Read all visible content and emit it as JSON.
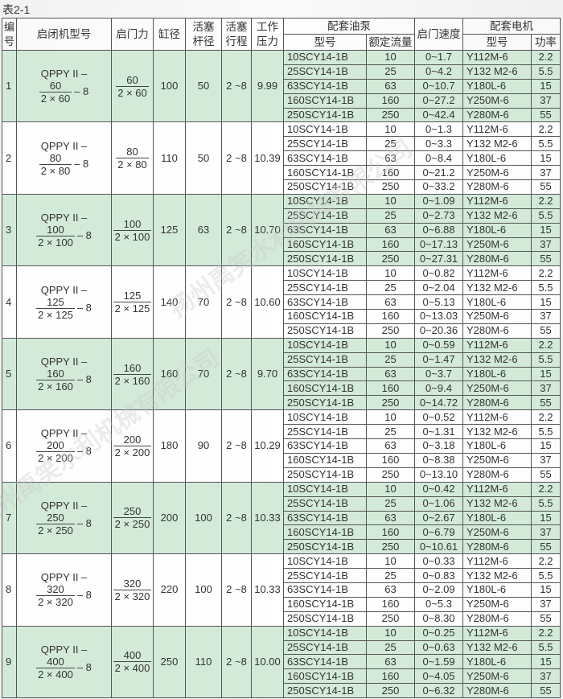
{
  "title": "表2-1",
  "colors": {
    "green_row": "#d3ead9",
    "white_row": "#ffffff",
    "border": "#555555"
  },
  "headers": {
    "no": "编号",
    "model": "启闭机型号",
    "force": "启门力",
    "bore": "缸径",
    "rod": "活塞杆径",
    "stroke": "活塞行程",
    "pressure": "工作压力",
    "pump_group": "配套油泵",
    "pump_model": "型号",
    "pump_flow": "额定流量",
    "speed": "启门速度",
    "motor_group": "配套电机",
    "motor_model": "型号",
    "motor_power": "功率"
  },
  "watermark": "扬州禹笑水利机械有限公司",
  "pump_models": [
    "10SCY14-1B",
    "25SCY14-1B",
    "63SCY14-1B",
    "160SCY14-1B",
    "250SCY14-1B"
  ],
  "groups": [
    {
      "no": "1",
      "model_prefix": "QPPY II –",
      "model_num": "60",
      "model_den": "2 × 60",
      "model_suffix": "– 8",
      "force_num": "60",
      "force_den": "2 × 60",
      "bore": "100",
      "rod": "50",
      "stroke": "2 ~8",
      "pressure": "9.99",
      "rows": [
        {
          "pump": "10SCY14-1B",
          "flow": "10",
          "speed": "0~1.7",
          "motor": "Y112M-6",
          "power": "2.2"
        },
        {
          "pump": "25SCY14-1B",
          "flow": "25",
          "speed": "0~4.2",
          "motor": "Y132 M2-6",
          "power": "5.5"
        },
        {
          "pump": "63SCY14-1B",
          "flow": "63",
          "speed": "0~10.7",
          "motor": "Y180L-6",
          "power": "15"
        },
        {
          "pump": "160SCY14-1B",
          "flow": "160",
          "speed": "0~27.2",
          "motor": "Y250M-6",
          "power": "37"
        },
        {
          "pump": "250SCY14-1B",
          "flow": "250",
          "speed": "0~42.4",
          "motor": "Y280M-6",
          "power": "55"
        }
      ]
    },
    {
      "no": "2",
      "model_prefix": "QPPY II –",
      "model_num": "80",
      "model_den": "2 × 80",
      "model_suffix": "– 8",
      "force_num": "80",
      "force_den": "2 × 80",
      "bore": "110",
      "rod": "50",
      "stroke": "2 ~8",
      "pressure": "10.39",
      "rows": [
        {
          "pump": "10SCY14-1B",
          "flow": "10",
          "speed": "0~1.3",
          "motor": "Y112M-6",
          "power": "2.2"
        },
        {
          "pump": "25SCY14-1B",
          "flow": "25",
          "speed": "0~3.3",
          "motor": "Y132 M2-6",
          "power": "5.5"
        },
        {
          "pump": "63SCY14-1B",
          "flow": "63",
          "speed": "0~8.4",
          "motor": "Y180L-6",
          "power": "15"
        },
        {
          "pump": "160SCY14-1B",
          "flow": "160",
          "speed": "0~21.2",
          "motor": "Y250M-6",
          "power": "37"
        },
        {
          "pump": "250SCY14-1B",
          "flow": "250",
          "speed": "0~33.2",
          "motor": "Y280M-6",
          "power": "55"
        }
      ]
    },
    {
      "no": "3",
      "model_prefix": "QPPY II –",
      "model_num": "100",
      "model_den": "2 × 100",
      "model_suffix": "– 8",
      "force_num": "100",
      "force_den": "2 × 100",
      "bore": "125",
      "rod": "63",
      "stroke": "2 ~8",
      "pressure": "10.70",
      "rows": [
        {
          "pump": "10SCY14-1B",
          "flow": "10",
          "speed": "0~1.09",
          "motor": "Y112M-6",
          "power": "2.2"
        },
        {
          "pump": "25SCY14-1B",
          "flow": "25",
          "speed": "0~2.73",
          "motor": "Y132 M2-6",
          "power": "5.5"
        },
        {
          "pump": "63SCY14-1B",
          "flow": "63",
          "speed": "0~6.88",
          "motor": "Y180L-6",
          "power": "15"
        },
        {
          "pump": "160SCY14-1B",
          "flow": "160",
          "speed": "0~17.13",
          "motor": "Y250M-6",
          "power": "37"
        },
        {
          "pump": "250SCY14-1B",
          "flow": "250",
          "speed": "0~27.31",
          "motor": "Y280M-6",
          "power": "55"
        }
      ]
    },
    {
      "no": "4",
      "model_prefix": "QPPY II –",
      "model_num": "125",
      "model_den": "2 × 125",
      "model_suffix": "– 8",
      "force_num": "125",
      "force_den": "2 × 125",
      "bore": "140",
      "rod": "70",
      "stroke": "2 ~8",
      "pressure": "10.60",
      "rows": [
        {
          "pump": "10SCY14-1B",
          "flow": "10",
          "speed": "0~0.82",
          "motor": "Y112M-6",
          "power": "2.2"
        },
        {
          "pump": "25SCY14-1B",
          "flow": "25",
          "speed": "0~2.04",
          "motor": "Y132 M2-6",
          "power": "5.5"
        },
        {
          "pump": "63SCY14-1B",
          "flow": "63",
          "speed": "0~5.13",
          "motor": "Y180L-6",
          "power": "15"
        },
        {
          "pump": "160SCY14-1B",
          "flow": "160",
          "speed": "0~13.03",
          "motor": "Y250M-6",
          "power": "37"
        },
        {
          "pump": "250SCY14-1B",
          "flow": "250",
          "speed": "0~20.36",
          "motor": "Y280M-6",
          "power": "55"
        }
      ]
    },
    {
      "no": "5",
      "model_prefix": "QPPY II –",
      "model_num": "160",
      "model_den": "2 × 160",
      "model_suffix": "– 8",
      "force_num": "160",
      "force_den": "2 × 160",
      "bore": "160",
      "rod": "70",
      "stroke": "2 ~8",
      "pressure": "9.70",
      "rows": [
        {
          "pump": "10SCY14-1B",
          "flow": "10",
          "speed": "0~0.59",
          "motor": "Y112M-6",
          "power": "2.2"
        },
        {
          "pump": "25SCY14-1B",
          "flow": "25",
          "speed": "0~1.47",
          "motor": "Y132 M2-6",
          "power": "5.5"
        },
        {
          "pump": "63SCY14-1B",
          "flow": "63",
          "speed": "0~3.7",
          "motor": "Y180L-6",
          "power": "15"
        },
        {
          "pump": "160SCY14-1B",
          "flow": "160",
          "speed": "0~9.4",
          "motor": "Y250M-6",
          "power": "37"
        },
        {
          "pump": "250SCY14-1B",
          "flow": "250",
          "speed": "0~14.72",
          "motor": "Y280M-6",
          "power": "55"
        }
      ]
    },
    {
      "no": "6",
      "model_prefix": "QPPY II –",
      "model_num": "200",
      "model_den": "2 × 200",
      "model_suffix": "– 8",
      "force_num": "200",
      "force_den": "2 × 200",
      "bore": "180",
      "rod": "90",
      "stroke": "2 ~8",
      "pressure": "10.29",
      "rows": [
        {
          "pump": "10SCY14-1B",
          "flow": "10",
          "speed": "0~0.52",
          "motor": "Y112M-6",
          "power": "2.2"
        },
        {
          "pump": "25SCY14-1B",
          "flow": "25",
          "speed": "0~1.31",
          "motor": "Y132 M2-6",
          "power": "5.5"
        },
        {
          "pump": "63SCY14-1B",
          "flow": "63",
          "speed": "0~3.18",
          "motor": "Y180L-6",
          "power": "15"
        },
        {
          "pump": "160SCY14-1B",
          "flow": "160",
          "speed": "0~8.38",
          "motor": "Y250M-6",
          "power": "37"
        },
        {
          "pump": "250SCY14-1B",
          "flow": "250",
          "speed": "0~13.10",
          "motor": "Y280M-6",
          "power": "55"
        }
      ]
    },
    {
      "no": "7",
      "model_prefix": "QPPY II –",
      "model_num": "250",
      "model_den": "2 × 250",
      "model_suffix": "– 8",
      "force_num": "250",
      "force_den": "2 × 250",
      "bore": "200",
      "rod": "100",
      "stroke": "2 ~8",
      "pressure": "10.33",
      "rows": [
        {
          "pump": "10SCY14-1B",
          "flow": "10",
          "speed": "0~0.42",
          "motor": "Y112M-6",
          "power": "2.2"
        },
        {
          "pump": "25SCY14-1B",
          "flow": "25",
          "speed": "0~1.06",
          "motor": "Y132 M2-6",
          "power": "5.5"
        },
        {
          "pump": "63SCY14-1B",
          "flow": "63",
          "speed": "0~2.67",
          "motor": "Y180L-6",
          "power": "15"
        },
        {
          "pump": "160SCY14-1B",
          "flow": "160",
          "speed": "0~6.79",
          "motor": "Y250M-6",
          "power": "37"
        },
        {
          "pump": "250SCY14-1B",
          "flow": "250",
          "speed": "0~10.61",
          "motor": "Y280M-6",
          "power": "55"
        }
      ]
    },
    {
      "no": "8",
      "model_prefix": "QPPY II –",
      "model_num": "320",
      "model_den": "2 × 320",
      "model_suffix": "– 8",
      "force_num": "320",
      "force_den": "2 × 320",
      "bore": "220",
      "rod": "100",
      "stroke": "2 ~8",
      "pressure": "10.33",
      "rows": [
        {
          "pump": "10SCY14-1B",
          "flow": "10",
          "speed": "0~0.33",
          "motor": "Y112M-6",
          "power": "2.2"
        },
        {
          "pump": "25SCY14-1B",
          "flow": "25",
          "speed": "0~0.83",
          "motor": "Y132 M2-6",
          "power": "5.5"
        },
        {
          "pump": "63SCY14-1B",
          "flow": "63",
          "speed": "0~2.09",
          "motor": "Y180L-6",
          "power": "15"
        },
        {
          "pump": "160SCY14-1B",
          "flow": "160",
          "speed": "0~5.3",
          "motor": "Y250M-6",
          "power": "37"
        },
        {
          "pump": "250SCY14-1B",
          "flow": "250",
          "speed": "0~8.30",
          "motor": "Y280M-6",
          "power": "55"
        }
      ]
    },
    {
      "no": "9",
      "model_prefix": "QPPY II –",
      "model_num": "400",
      "model_den": "2 × 400",
      "model_suffix": "– 8",
      "force_num": "400",
      "force_den": "2 × 400",
      "bore": "250",
      "rod": "110",
      "stroke": "2 ~8",
      "pressure": "10.00",
      "rows": [
        {
          "pump": "10SCY14-1B",
          "flow": "10",
          "speed": "0~0.25",
          "motor": "Y112M-6",
          "power": "2.2"
        },
        {
          "pump": "25SCY14-1B",
          "flow": "25",
          "speed": "0~0.63",
          "motor": "Y132 M2-6",
          "power": "5.5"
        },
        {
          "pump": "63SCY14-1B",
          "flow": "63",
          "speed": "0~1.59",
          "motor": "Y180L-6",
          "power": "15"
        },
        {
          "pump": "160SCY14-1B",
          "flow": "160",
          "speed": "0~4.05",
          "motor": "Y250M-6",
          "power": "37"
        },
        {
          "pump": "250SCY14-1B",
          "flow": "250",
          "speed": "0~6.32",
          "motor": "Y280M-6",
          "power": "55"
        }
      ]
    }
  ]
}
